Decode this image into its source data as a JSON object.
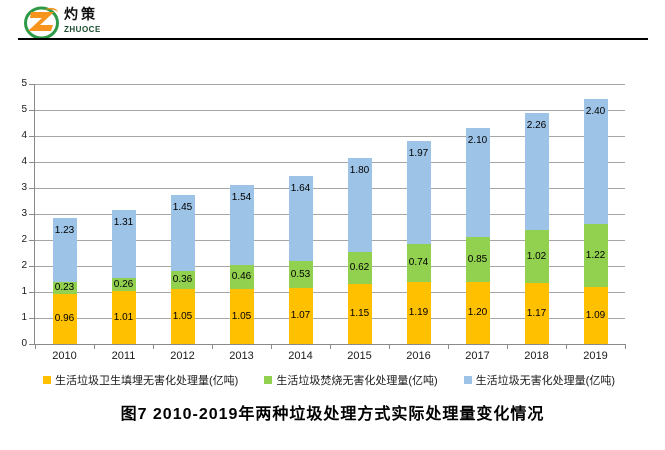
{
  "logo": {
    "cn": "灼策",
    "en": "ZHUOCE",
    "z_color": "#F7941D",
    "ring_color": "#2E9A47"
  },
  "chart_data": {
    "type": "bar",
    "stacked": true,
    "title": "图7  2010-2019年两种垃圾处理方式实际处理量变化情况",
    "categories": [
      "2010",
      "2011",
      "2012",
      "2013",
      "2014",
      "2015",
      "2016",
      "2017",
      "2018",
      "2019"
    ],
    "series": [
      {
        "name": "生活垃圾卫生填埋无害化处理量(亿吨)",
        "color": "#FFC000",
        "label_placement": "center",
        "values": [
          0.96,
          1.01,
          1.05,
          1.05,
          1.07,
          1.15,
          1.19,
          1.2,
          1.17,
          1.09
        ]
      },
      {
        "name": "生活垃圾焚烧无害化处理量(亿吨)",
        "color": "#92D050",
        "label_placement": "center",
        "values": [
          0.23,
          0.26,
          0.36,
          0.46,
          0.53,
          0.62,
          0.74,
          0.85,
          1.02,
          1.22
        ]
      },
      {
        "name": "生活垃圾无害化处理量(亿吨)",
        "color": "#9DC3E6",
        "label_placement": "inside-end",
        "values": [
          1.23,
          1.31,
          1.45,
          1.54,
          1.64,
          1.8,
          1.97,
          2.1,
          2.26,
          2.4
        ]
      }
    ],
    "ylim": [
      0,
      5
    ],
    "y_ticks": [
      {
        "label": "0",
        "value": 0.0
      },
      {
        "label": "1",
        "value": 0.5
      },
      {
        "label": "1",
        "value": 1.0
      },
      {
        "label": "2",
        "value": 1.5
      },
      {
        "label": "2",
        "value": 2.0
      },
      {
        "label": "3",
        "value": 2.5
      },
      {
        "label": "3",
        "value": 3.0
      },
      {
        "label": "4",
        "value": 3.5
      },
      {
        "label": "4",
        "value": 4.0
      },
      {
        "label": "5",
        "value": 4.5
      },
      {
        "label": "5",
        "value": 5.0
      }
    ],
    "grid": true,
    "legend_position": "bottom",
    "value_label_decimals": 2
  }
}
